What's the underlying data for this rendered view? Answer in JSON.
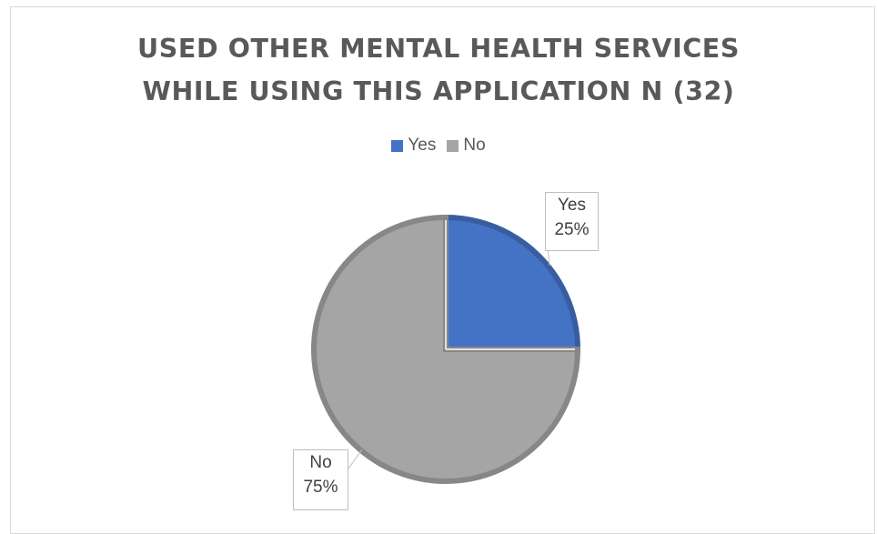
{
  "chart_data": {
    "type": "pie",
    "title_lines": [
      "USED OTHER MENTAL HEALTH SERVICES",
      "WHILE USING THIS APPLICATION N (32)"
    ],
    "legend_placement": "top",
    "slices": [
      {
        "name": "Yes",
        "value": 25,
        "label": "25%",
        "color": "#4472c4"
      },
      {
        "name": "No",
        "value": 75,
        "label": "75%",
        "color": "#a5a5a5"
      }
    ],
    "legend": [
      "Yes",
      "No"
    ]
  }
}
